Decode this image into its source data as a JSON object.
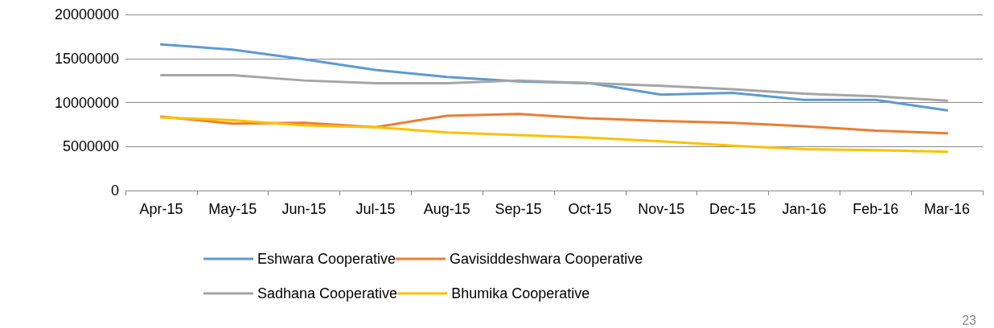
{
  "chart_data": {
    "type": "line",
    "categories": [
      "Apr-15",
      "May-15",
      "Jun-15",
      "Jul-15",
      "Aug-15",
      "Sep-15",
      "Oct-15",
      "Nov-15",
      "Dec-15",
      "Jan-16",
      "Feb-16",
      "Mar-16"
    ],
    "series": [
      {
        "name": "Eshwara Cooperative",
        "color": "#5b9bd5",
        "values": [
          16600000,
          16000000,
          14900000,
          13700000,
          12900000,
          12400000,
          12200000,
          10900000,
          11100000,
          10300000,
          10300000,
          9100000
        ]
      },
      {
        "name": "Gavisiddeshwara Cooperative",
        "color": "#ed7d31",
        "values": [
          8400000,
          7600000,
          7700000,
          7200000,
          8500000,
          8700000,
          8200000,
          7900000,
          7700000,
          7300000,
          6800000,
          6500000
        ]
      },
      {
        "name": "Sadhana Cooperative",
        "color": "#a5a5a5",
        "values": [
          13100000,
          13100000,
          12500000,
          12200000,
          12200000,
          12500000,
          12200000,
          11900000,
          11500000,
          11000000,
          10700000,
          10200000
        ]
      },
      {
        "name": "Bhumika Cooperative",
        "color": "#ffc000",
        "values": [
          8300000,
          8000000,
          7400000,
          7200000,
          6600000,
          6300000,
          6000000,
          5600000,
          5100000,
          4700000,
          4600000,
          4400000
        ]
      }
    ],
    "ylim": [
      0,
      20000000
    ],
    "yticks": [
      0,
      5000000,
      10000000,
      15000000,
      20000000
    ],
    "grid": "y",
    "legend": "bottom",
    "marker": "none",
    "line_style": "solid",
    "annotations": [
      "23"
    ]
  }
}
